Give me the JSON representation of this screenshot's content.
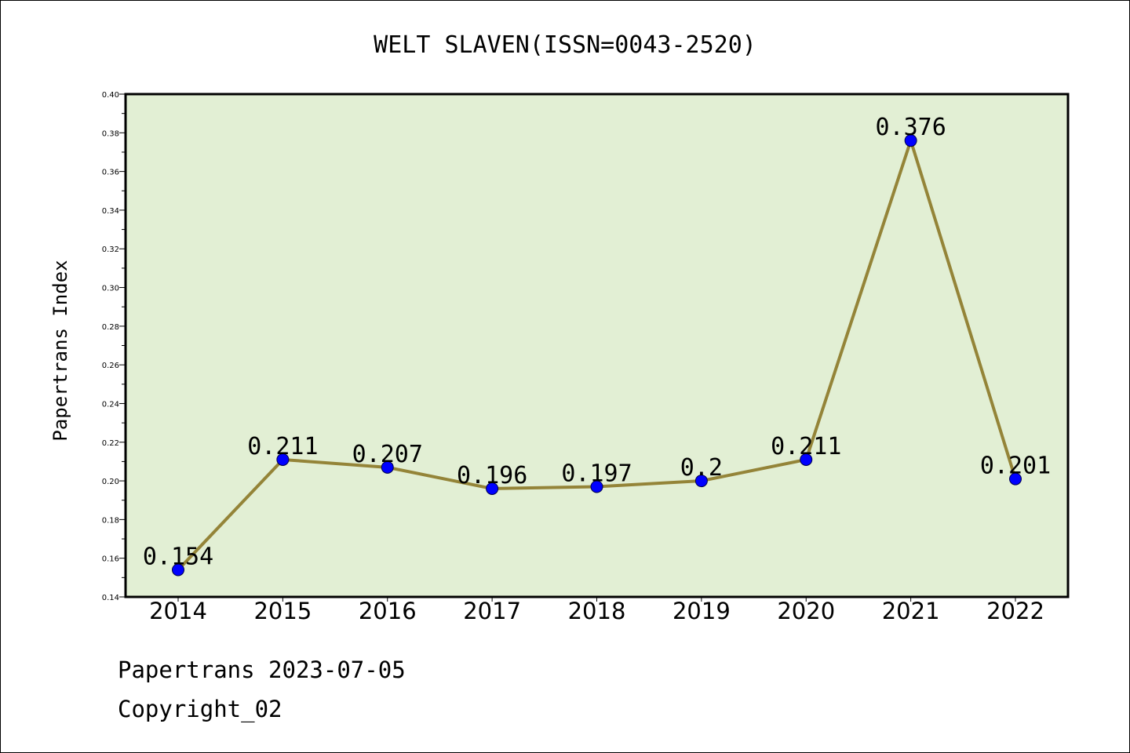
{
  "chart_data": {
    "type": "line",
    "title": "WELT SLAVEN(ISSN=0043-2520)",
    "ylabel": "Papertrans Index",
    "xlabel": "",
    "categories": [
      "2014",
      "2015",
      "2016",
      "2017",
      "2018",
      "2019",
      "2020",
      "2021",
      "2022"
    ],
    "values": [
      0.154,
      0.211,
      0.207,
      0.196,
      0.197,
      0.2,
      0.211,
      0.376,
      0.201
    ],
    "data_labels": [
      "0.154",
      "0.211",
      "0.207",
      "0.196",
      "0.197",
      "0.2",
      "0.211",
      "0.376",
      "0.201"
    ],
    "ylim": [
      0.14,
      0.4
    ],
    "yticks": [
      "0.14",
      "0.16",
      "0.18",
      "0.20",
      "0.22",
      "0.24",
      "0.26",
      "0.28",
      "0.30",
      "0.32",
      "0.34",
      "0.36",
      "0.38",
      "0.40"
    ],
    "grid": false,
    "colors": {
      "plot_background": "#e2efd4",
      "line": "#948438",
      "marker": "#0000ff"
    }
  },
  "footer": {
    "line1": "Papertrans 2023-07-05",
    "line2": "Copyright_02"
  }
}
